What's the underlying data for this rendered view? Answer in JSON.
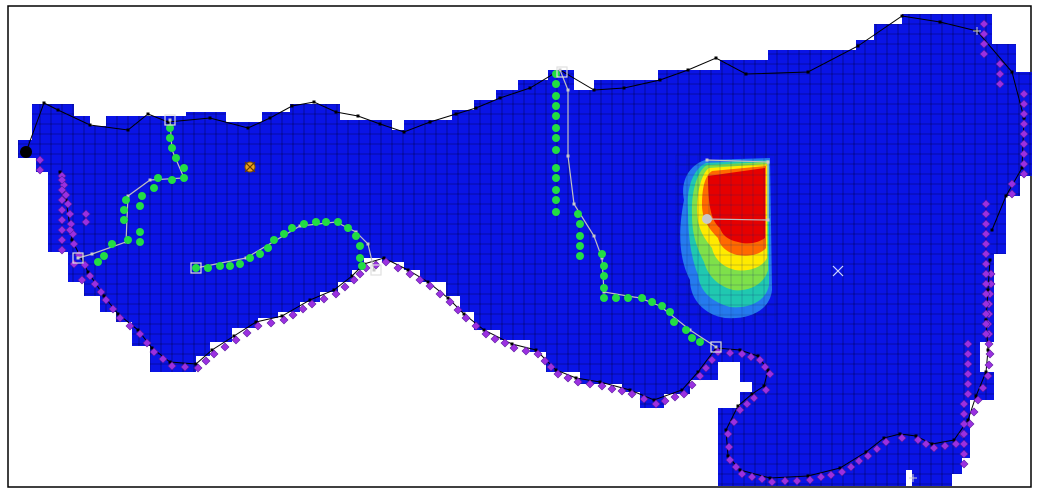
{
  "view": {
    "title": "",
    "colors": {
      "background": "#ffffff",
      "frame": "#000000",
      "grid_cell": "#0a14e6",
      "grid_line": "#000040",
      "boundary_node": "#8a2be2",
      "well": "#22dd44",
      "arc": "#c8c8c8",
      "outline": "#000000",
      "plume_low": "#38b8f0",
      "plume_mid": "#00c8a0",
      "plume_high": "#ffea00",
      "plume_hot": "#ff5a00",
      "plume_peak": "#e60000"
    },
    "icons": {
      "model_marker": "cross-icon",
      "well_marker": "circle-icon",
      "node_marker": "square-icon",
      "boundary_marker": "diamond-icon"
    },
    "plume": {
      "levels": [
        "low",
        "mid",
        "high",
        "hot",
        "peak"
      ]
    }
  }
}
